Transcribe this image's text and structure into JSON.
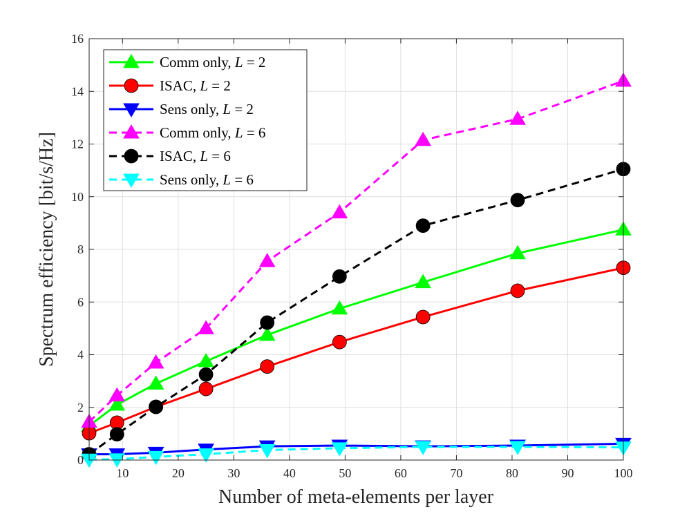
{
  "chart_data": {
    "type": "line",
    "title": "",
    "xlabel": "Number of meta-elements per layer",
    "ylabel": "Spectrum efficiency [bit/s/Hz]",
    "xlim": [
      4,
      100
    ],
    "ylim": [
      0,
      16
    ],
    "xticks": [
      10,
      20,
      30,
      40,
      50,
      60,
      70,
      80,
      90,
      100
    ],
    "yticks": [
      0,
      2,
      4,
      6,
      8,
      10,
      12,
      14,
      16
    ],
    "grid": true,
    "legend_position": "top-left",
    "x": [
      4,
      9,
      16,
      25,
      36,
      49,
      64,
      81,
      100
    ],
    "series": [
      {
        "name": "Comm only, L = 2",
        "label_main": "Comm only, ",
        "label_var": "L",
        "label_eq": " = 2",
        "color": "#00ff00",
        "dash": "solid",
        "marker": "triangle-up",
        "values": [
          1.3,
          2.1,
          2.9,
          3.75,
          4.75,
          5.75,
          6.75,
          7.85,
          8.75
        ]
      },
      {
        "name": "ISAC, L = 2",
        "label_main": "ISAC, ",
        "label_var": "L",
        "label_eq": " = 2",
        "color": "#ff0000",
        "dash": "solid",
        "marker": "circle",
        "values": [
          1.02,
          1.42,
          2.02,
          2.7,
          3.55,
          4.48,
          5.43,
          6.43,
          7.3
        ]
      },
      {
        "name": "Sens only, L = 2",
        "label_main": "Sens only, ",
        "label_var": "L",
        "label_eq": " = 2",
        "color": "#0000ff",
        "dash": "solid",
        "marker": "triangle-down",
        "values": [
          0.22,
          0.22,
          0.28,
          0.4,
          0.52,
          0.55,
          0.52,
          0.55,
          0.62
        ]
      },
      {
        "name": "Comm only, L = 6",
        "label_main": "Comm only, ",
        "label_var": "L",
        "label_eq": " = 6",
        "color": "#ff00ff",
        "dash": "dashed",
        "marker": "triangle-up",
        "values": [
          1.45,
          2.45,
          3.7,
          5.0,
          7.55,
          9.4,
          12.15,
          12.95,
          14.4
        ]
      },
      {
        "name": "ISAC, L = 6",
        "label_main": "ISAC, ",
        "label_var": "L",
        "label_eq": " = 6",
        "color": "#000000",
        "dash": "dashed",
        "marker": "circle",
        "values": [
          0.22,
          0.98,
          2.02,
          3.25,
          5.22,
          6.97,
          8.9,
          9.87,
          11.05
        ]
      },
      {
        "name": "Sens only, L = 6",
        "label_main": "Sens only, ",
        "label_var": "L",
        "label_eq": " = 6",
        "color": "#00ffff",
        "dash": "dashed",
        "marker": "triangle-down",
        "values": [
          0.02,
          0.03,
          0.12,
          0.22,
          0.38,
          0.45,
          0.5,
          0.5,
          0.48
        ]
      }
    ]
  }
}
